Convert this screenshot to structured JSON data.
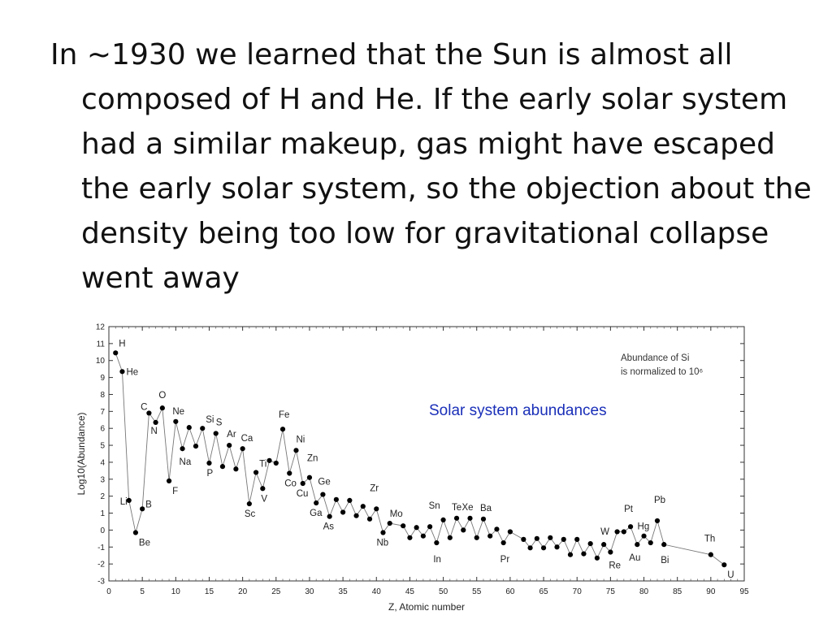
{
  "slide": {
    "paragraph": "In ~1930 we learned that the Sun is almost all composed of H and He. If the early solar system had a similar makeup, gas might have escaped the early solar system, so the objection about the density being too low for gravitational collapse went away",
    "annotation": "Solar system abundances"
  },
  "colors": {
    "text": "#111111",
    "annotation": "#1a2fb8",
    "series": "#000000"
  },
  "chart_data": {
    "type": "line",
    "title": "",
    "xlabel": "Z, Atomic number",
    "ylabel": "Log10(Abundance)",
    "note": [
      "Abundance of Si",
      "is normalized to 10⁶"
    ],
    "xlim": [
      0,
      95
    ],
    "ylim": [
      -3,
      12
    ],
    "xticks": [
      0,
      5,
      10,
      15,
      20,
      25,
      30,
      35,
      40,
      45,
      50,
      55,
      60,
      65,
      70,
      75,
      80,
      85,
      90,
      95
    ],
    "yticks": [
      -3,
      -2,
      -1,
      0,
      1,
      2,
      3,
      4,
      5,
      6,
      7,
      8,
      9,
      10,
      11,
      12
    ],
    "grid": false,
    "series": [
      {
        "points": [
          [
            1,
            10.45
          ],
          [
            2,
            9.35
          ],
          [
            3,
            1.75
          ],
          [
            4,
            -0.15
          ],
          [
            5,
            1.25
          ],
          [
            6,
            6.9
          ],
          [
            7,
            6.35
          ],
          [
            8,
            7.2
          ],
          [
            9,
            2.9
          ],
          [
            10,
            6.4
          ],
          [
            11,
            4.8
          ],
          [
            12,
            6.05
          ],
          [
            13,
            4.95
          ],
          [
            14,
            6.0
          ],
          [
            15,
            3.95
          ],
          [
            16,
            5.7
          ],
          [
            17,
            3.75
          ],
          [
            18,
            5.0
          ],
          [
            19,
            3.6
          ],
          [
            20,
            4.8
          ],
          [
            21,
            1.55
          ],
          [
            22,
            3.4
          ],
          [
            23,
            2.45
          ],
          [
            24,
            4.1
          ],
          [
            25,
            3.95
          ],
          [
            26,
            5.95
          ],
          [
            27,
            3.35
          ],
          [
            28,
            4.7
          ],
          [
            29,
            2.75
          ],
          [
            30,
            3.1
          ],
          [
            31,
            1.6
          ],
          [
            32,
            2.1
          ],
          [
            33,
            0.8
          ],
          [
            34,
            1.8
          ],
          [
            35,
            1.05
          ],
          [
            36,
            1.75
          ],
          [
            37,
            0.85
          ],
          [
            38,
            1.4
          ],
          [
            39,
            0.65
          ],
          [
            40,
            1.25
          ],
          [
            41,
            -0.15
          ],
          [
            42,
            0.4
          ],
          [
            44,
            0.25
          ],
          [
            45,
            -0.45
          ],
          [
            46,
            0.15
          ],
          [
            47,
            -0.35
          ],
          [
            48,
            0.2
          ],
          [
            49,
            -0.75
          ],
          [
            50,
            0.6
          ],
          [
            51,
            -0.45
          ],
          [
            52,
            0.7
          ],
          [
            53,
            0.0
          ],
          [
            54,
            0.7
          ],
          [
            55,
            -0.45
          ],
          [
            56,
            0.65
          ],
          [
            57,
            -0.35
          ],
          [
            58,
            0.05
          ],
          [
            59,
            -0.75
          ],
          [
            60,
            -0.1
          ],
          [
            62,
            -0.55
          ],
          [
            63,
            -1.05
          ],
          [
            64,
            -0.5
          ],
          [
            65,
            -1.05
          ],
          [
            66,
            -0.45
          ],
          [
            67,
            -1.0
          ],
          [
            68,
            -0.55
          ],
          [
            69,
            -1.45
          ],
          [
            70,
            -0.55
          ],
          [
            71,
            -1.4
          ],
          [
            72,
            -0.8
          ],
          [
            73,
            -1.65
          ],
          [
            74,
            -0.85
          ],
          [
            75,
            -1.3
          ],
          [
            76,
            -0.1
          ],
          [
            77,
            -0.1
          ],
          [
            78,
            0.2
          ],
          [
            79,
            -0.85
          ],
          [
            80,
            -0.35
          ],
          [
            81,
            -0.75
          ],
          [
            82,
            0.55
          ],
          [
            83,
            -0.85
          ],
          [
            90,
            -1.45
          ],
          [
            92,
            -2.05
          ]
        ]
      }
    ],
    "labels": [
      {
        "text": "H",
        "x": 1,
        "y": 10.45
      },
      {
        "text": "He",
        "x": 2,
        "y": 9.35
      },
      {
        "text": "Li",
        "x": 3,
        "y": 1.75
      },
      {
        "text": "Be",
        "x": 4,
        "y": -0.15
      },
      {
        "text": "B",
        "x": 5,
        "y": 1.25
      },
      {
        "text": "C",
        "x": 6,
        "y": 6.9
      },
      {
        "text": "N",
        "x": 7,
        "y": 6.35
      },
      {
        "text": "O",
        "x": 8,
        "y": 7.2
      },
      {
        "text": "F",
        "x": 9,
        "y": 2.9
      },
      {
        "text": "Ne",
        "x": 10,
        "y": 6.4
      },
      {
        "text": "Na",
        "x": 11,
        "y": 4.8
      },
      {
        "text": "Si",
        "x": 14,
        "y": 6.0
      },
      {
        "text": "P",
        "x": 15,
        "y": 3.95
      },
      {
        "text": "S",
        "x": 16,
        "y": 5.7
      },
      {
        "text": "Ar",
        "x": 18,
        "y": 5.0
      },
      {
        "text": "Ca",
        "x": 20,
        "y": 4.8
      },
      {
        "text": "Sc",
        "x": 21,
        "y": 1.55
      },
      {
        "text": "Ti",
        "x": 22,
        "y": 3.4
      },
      {
        "text": "V",
        "x": 23,
        "y": 2.45
      },
      {
        "text": "Fe",
        "x": 26,
        "y": 5.95
      },
      {
        "text": "Co",
        "x": 27,
        "y": 3.35
      },
      {
        "text": "Ni",
        "x": 28,
        "y": 4.7
      },
      {
        "text": "Cu",
        "x": 29,
        "y": 2.75
      },
      {
        "text": "Zn",
        "x": 30,
        "y": 3.1
      },
      {
        "text": "Ga",
        "x": 31,
        "y": 1.6
      },
      {
        "text": "Ge",
        "x": 32,
        "y": 2.1
      },
      {
        "text": "As",
        "x": 33,
        "y": 0.8
      },
      {
        "text": "Zr",
        "x": 40,
        "y": 1.25
      },
      {
        "text": "Nb",
        "x": 41,
        "y": -0.15
      },
      {
        "text": "Mo",
        "x": 42,
        "y": 0.4
      },
      {
        "text": "Sn",
        "x": 50,
        "y": 0.6
      },
      {
        "text": "In",
        "x": 49,
        "y": -0.75
      },
      {
        "text": "Te",
        "x": 52,
        "y": 0.7
      },
      {
        "text": "Xe",
        "x": 54,
        "y": 0.7
      },
      {
        "text": "Ba",
        "x": 56,
        "y": 0.65
      },
      {
        "text": "Pr",
        "x": 59,
        "y": -0.75
      },
      {
        "text": "W",
        "x": 74,
        "y": -0.85
      },
      {
        "text": "Re",
        "x": 75,
        "y": -1.3
      },
      {
        "text": "Pt",
        "x": 78,
        "y": 0.2
      },
      {
        "text": "Hg",
        "x": 80,
        "y": -0.35
      },
      {
        "text": "Au",
        "x": 79,
        "y": -0.85
      },
      {
        "text": "Pb",
        "x": 82,
        "y": 0.55
      },
      {
        "text": "Bi",
        "x": 83,
        "y": -0.85
      },
      {
        "text": "Th",
        "x": 90,
        "y": -1.45
      },
      {
        "text": "U",
        "x": 92,
        "y": -2.05
      }
    ]
  }
}
